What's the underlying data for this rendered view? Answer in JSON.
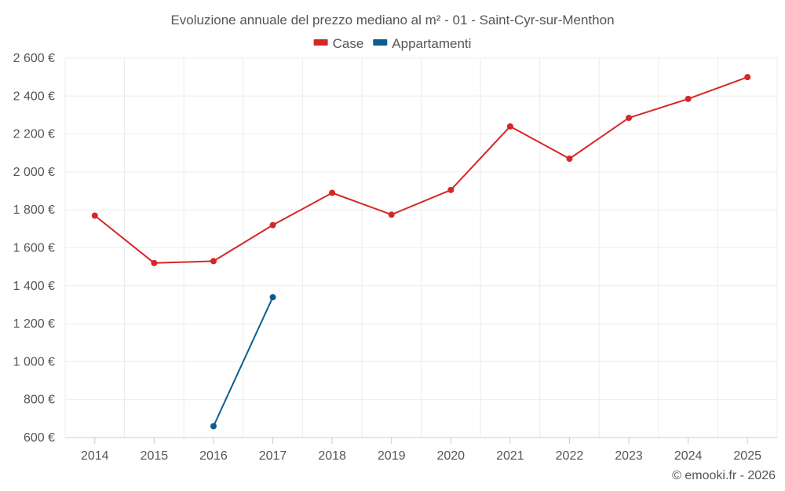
{
  "chart_data": {
    "type": "line",
    "title": "Evoluzione annuale del prezzo mediano al m² - 01 - Saint-Cyr-sur-Menthon",
    "categories": [
      "2014",
      "2015",
      "2016",
      "2017",
      "2018",
      "2019",
      "2020",
      "2021",
      "2022",
      "2023",
      "2024",
      "2025"
    ],
    "series": [
      {
        "name": "Case",
        "color": "#d62728",
        "values": [
          1770,
          1520,
          1530,
          1720,
          1890,
          1775,
          1905,
          2240,
          2070,
          2285,
          2385,
          2500
        ]
      },
      {
        "name": "Appartamenti",
        "color": "#0b5d8f",
        "values": [
          null,
          null,
          660,
          1340,
          null,
          null,
          null,
          null,
          null,
          null,
          null,
          null
        ]
      }
    ],
    "ylim": [
      600,
      2600
    ],
    "yticks": [
      600,
      800,
      1000,
      1200,
      1400,
      1600,
      1800,
      2000,
      2200,
      2400,
      2600
    ],
    "ytick_labels": [
      "600 €",
      "800 €",
      "1 000 €",
      "1 200 €",
      "1 400 €",
      "1 600 €",
      "1 800 €",
      "2 000 €",
      "2 200 €",
      "2 400 €",
      "2 600 €"
    ],
    "grid": true,
    "legend_position": "top-center",
    "xlabel": "",
    "ylabel": ""
  },
  "credit": "© emooki.fr - 2026"
}
